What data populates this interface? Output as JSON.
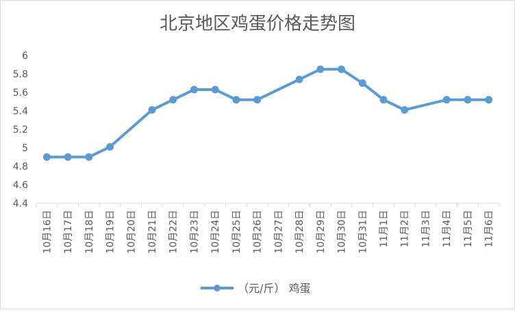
{
  "chart_data": {
    "type": "line",
    "title": "北京地区鸡蛋价格走势图",
    "xlabel": "",
    "ylabel": "",
    "categories": [
      "10月16日",
      "10月17日",
      "10月18日",
      "10月19日",
      "10月20日",
      "10月21日",
      "10月22日",
      "10月23日",
      "10月24日",
      "10月25日",
      "10月26日",
      "10月27日",
      "10月28日",
      "10月29日",
      "10月30日",
      "10月31日",
      "11月1日",
      "11月2日",
      "11月3日",
      "11月4日",
      "11月5日",
      "11月6日"
    ],
    "series": [
      {
        "name": "（元/斤） 鸡蛋",
        "color": "#5b9bd5",
        "values": [
          4.9,
          4.9,
          4.9,
          5.01,
          null,
          5.41,
          5.52,
          5.63,
          5.63,
          5.52,
          5.52,
          null,
          5.74,
          5.85,
          5.85,
          5.7,
          5.52,
          5.41,
          null,
          5.52,
          5.52,
          5.52
        ]
      }
    ],
    "ylim": [
      4.4,
      6.0
    ],
    "yticks": [
      "4.4",
      "4.6",
      "4.8",
      "5",
      "5.2",
      "5.4",
      "5.6",
      "5.8",
      "6"
    ],
    "grid": false,
    "legend": "bottom",
    "gaps": "connect"
  }
}
